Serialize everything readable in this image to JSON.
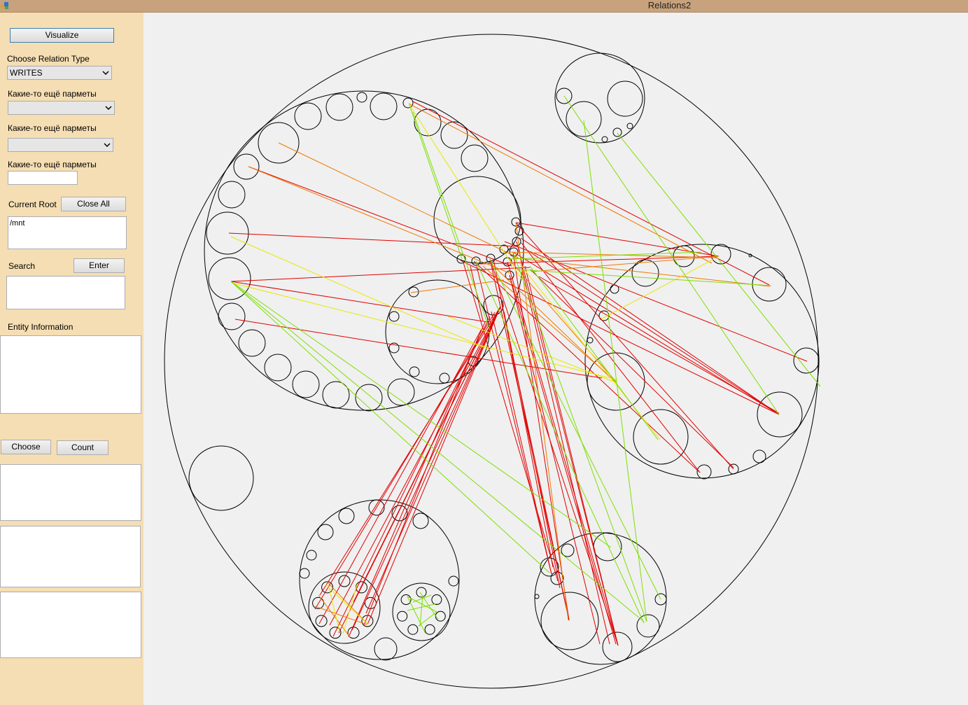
{
  "window": {
    "title": "Relations2"
  },
  "sidebar": {
    "visualize_button": "Visualize",
    "relation_type_label": "Choose Relation Type",
    "relation_type_value": "WRITES",
    "param1_label": "Какие-то ещё парметы",
    "param1_value": "",
    "param2_label": "Какие-то ещё парметы",
    "param2_value": "",
    "param3_label": "Какие-то ещё парметы",
    "param3_value": "",
    "current_root_label": "Current Root",
    "close_all_button": "Close All",
    "current_root_value": "/mnt",
    "search_label": "Search",
    "enter_button": "Enter",
    "search_value": "",
    "entity_info_label": "Entity Information",
    "entity_info_value": "",
    "choose_button": "Choose",
    "count_button": "Count",
    "list1_value": "",
    "list2_value": "",
    "list3_value": ""
  },
  "graph": {
    "edge_colors": {
      "red": "#e00000",
      "orange": "#f07800",
      "yellow": "#e8e800",
      "green": "#7ce000"
    },
    "node_stroke": "#000000"
  }
}
